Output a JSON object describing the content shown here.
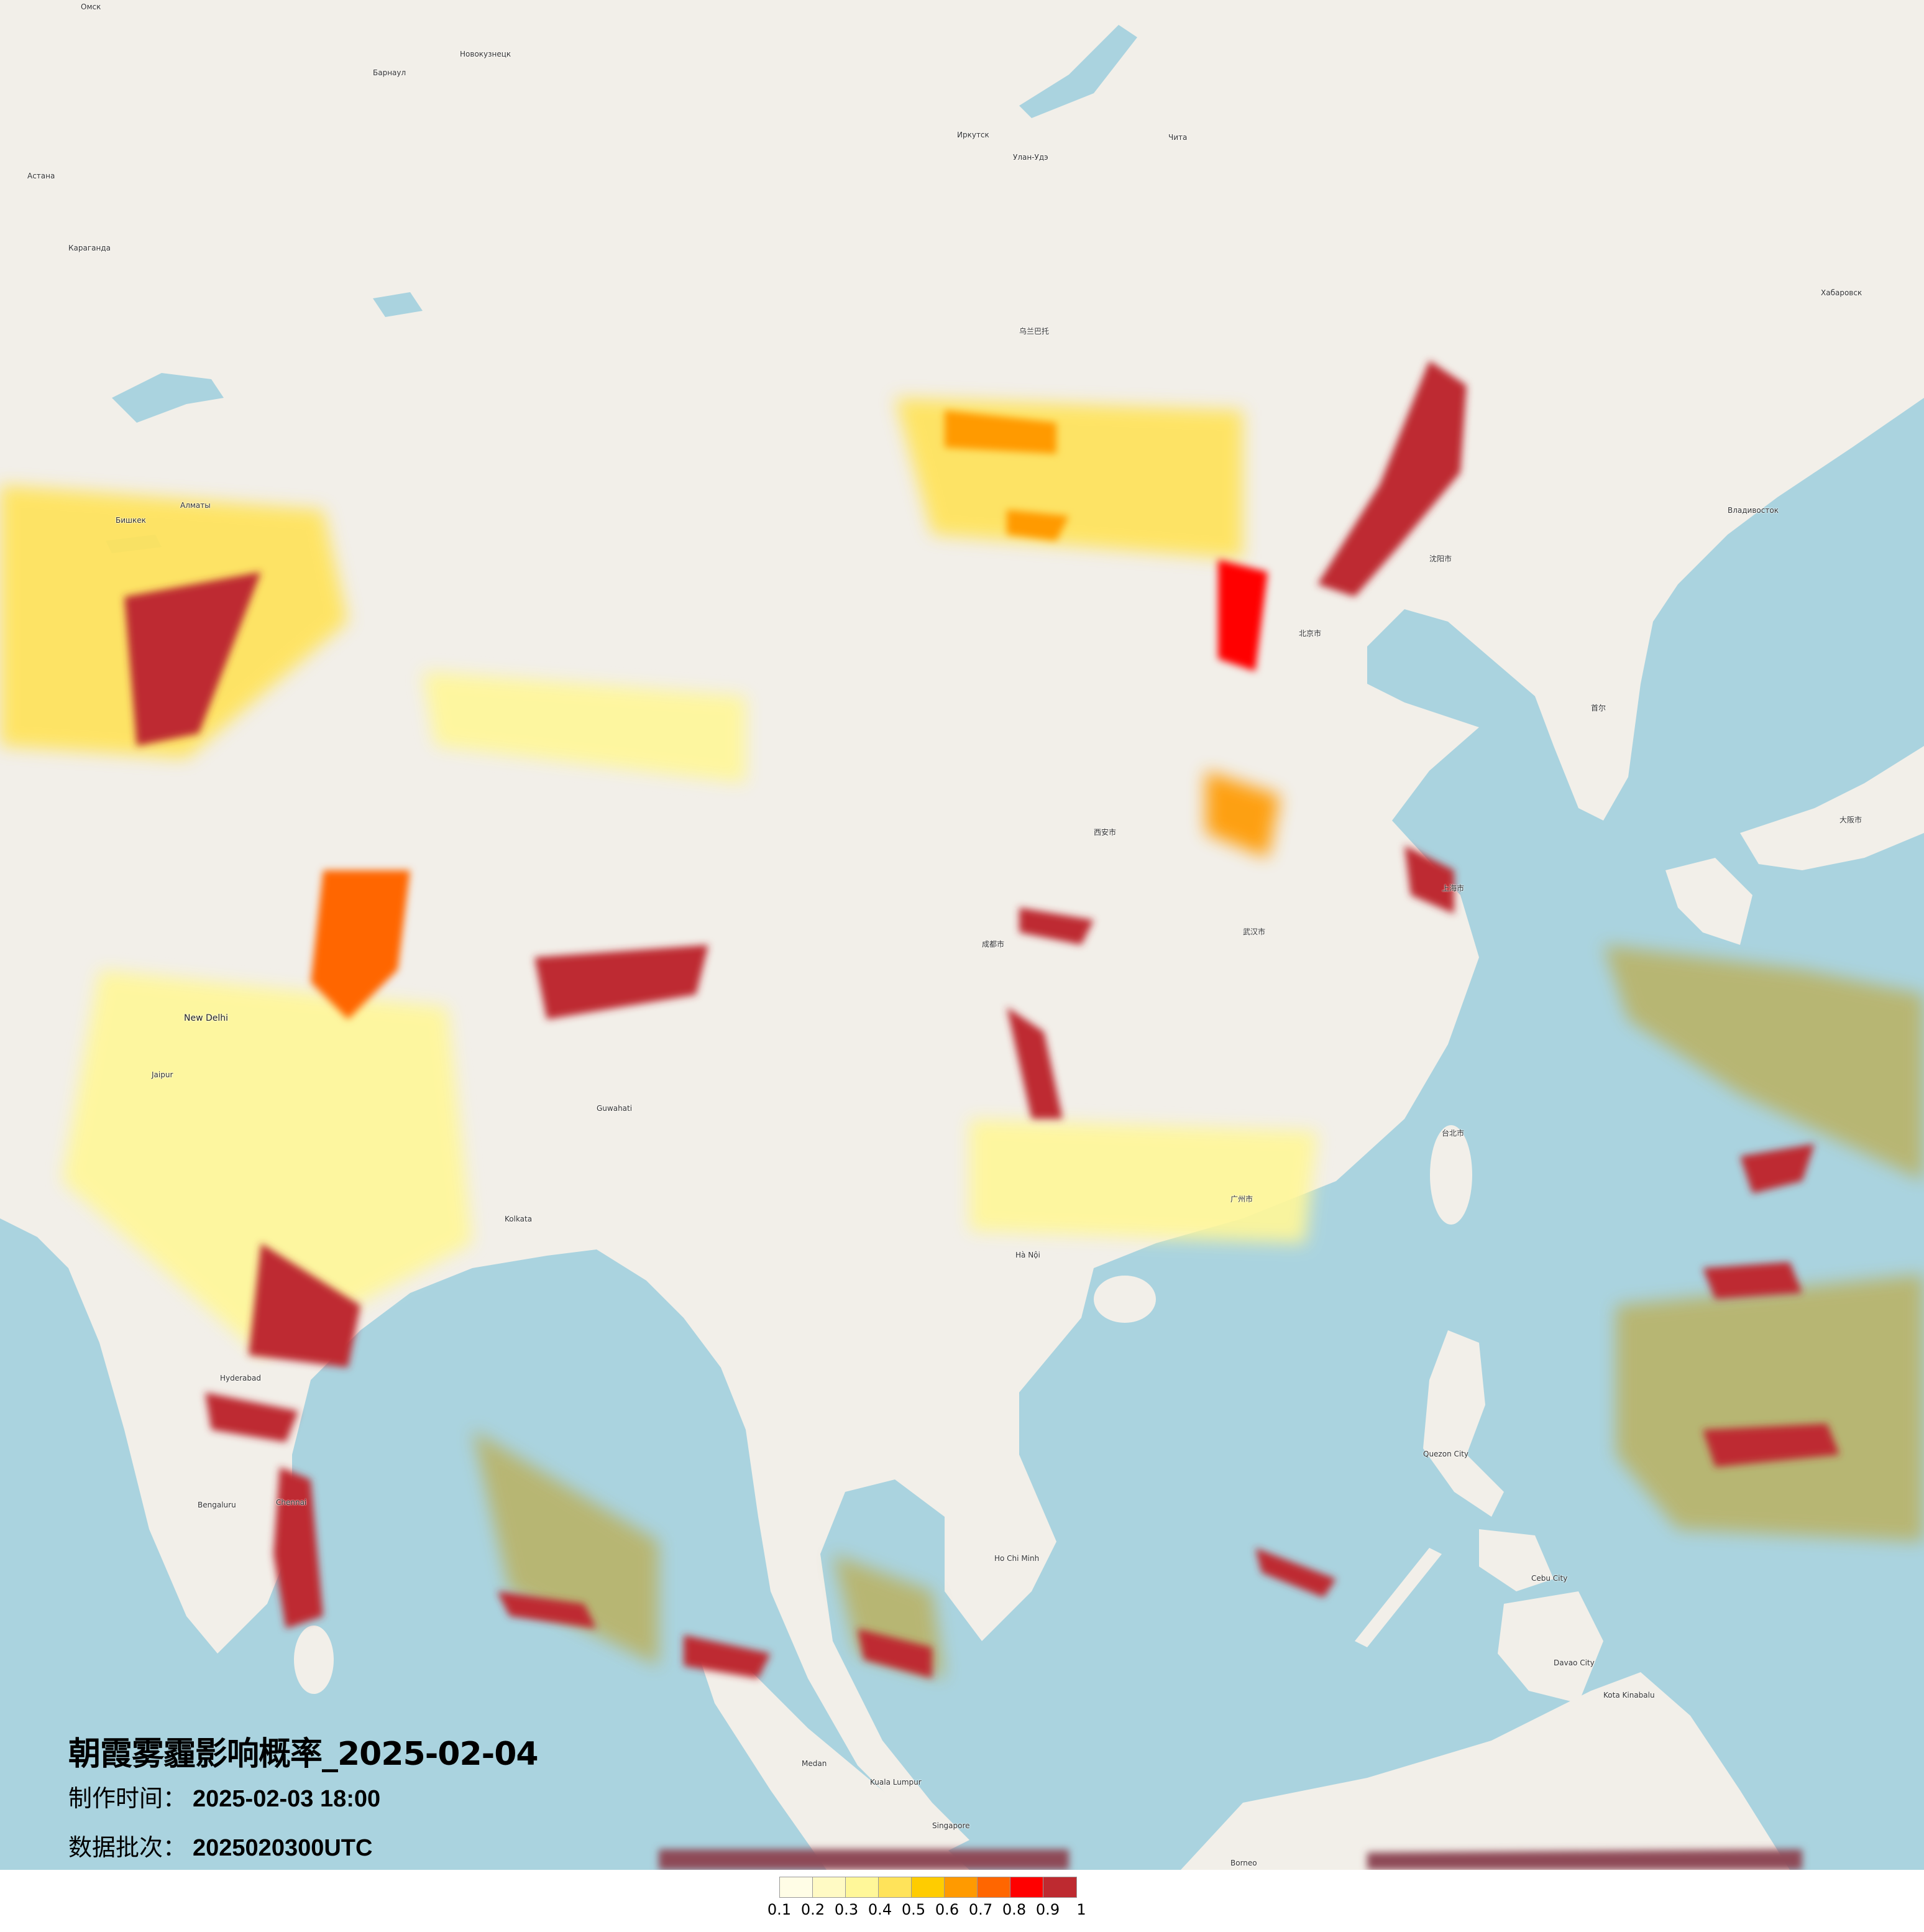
{
  "title": "朝霞雾霾影响概率_2025-02-04",
  "production_time": {
    "label": "制作时间：",
    "value": "2025-02-03 18:00"
  },
  "data_batch": {
    "label": "数据批次：",
    "value": "2025020300UTC"
  },
  "legend": {
    "labels": [
      "0.1",
      "0.2",
      "0.3",
      "0.4",
      "0.5",
      "0.6",
      "0.7",
      "0.8",
      "0.9",
      "1"
    ],
    "colors": [
      "#FFFDE6",
      "#FFFAC4",
      "#FFF799",
      "#FFE35A",
      "#FFCC00",
      "#FF9A00",
      "#FF6600",
      "#FF0000",
      "#BE2A30"
    ]
  },
  "map_colors": {
    "land": "#F2EFE9",
    "water": "#AAD3DF",
    "low_prob_sea": "#B9B46A"
  },
  "places": [
    "Омск",
    "Барнаул",
    "Новокузнецк",
    "Астана",
    "Караганда",
    "Иркутск",
    "Улан-Удэ",
    "Чита",
    "Хабаровск",
    "Владивосток",
    "Алматы",
    "Бишкек",
    "New Delhi",
    "Jaipur",
    "Kolkata",
    "Hyderabad",
    "Bengaluru",
    "Chennai",
    "Guwahati",
    "Hà Nội",
    "Ho Chi Minh",
    "Quezon City",
    "Cebu City",
    "Davao City",
    "Kota Kinabalu",
    "Singapore",
    "Medan",
    "Kuala Lumpur",
    "乌兰巴托",
    "北京市",
    "上海市",
    "广州市",
    "成都市",
    "武汉市",
    "西安市",
    "沈阳市",
    "台北市",
    "首尔",
    "大阪市",
    "Borneo"
  ]
}
